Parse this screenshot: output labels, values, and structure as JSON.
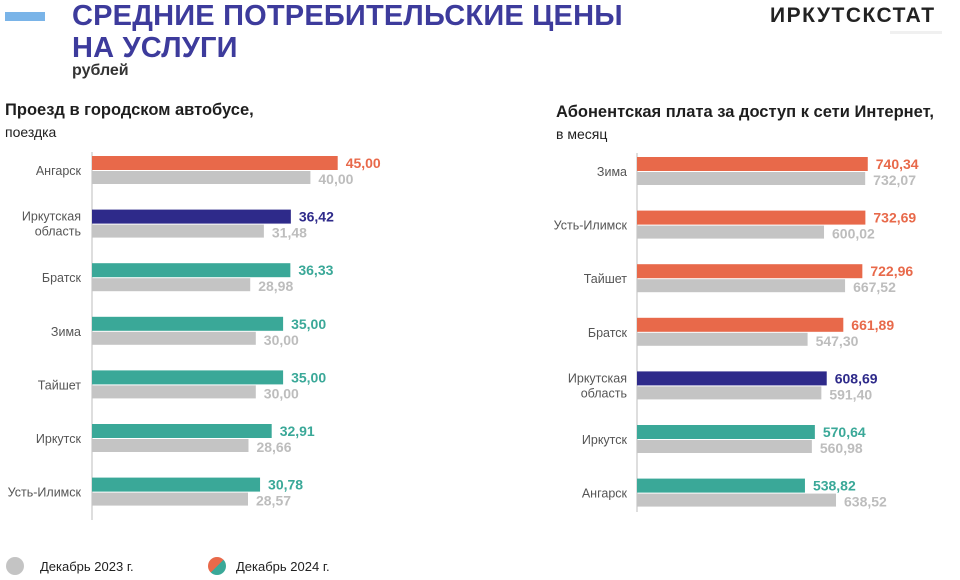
{
  "header": {
    "title_line1": "СРЕДНИЕ ПОТРЕБИТЕЛЬСКИЕ ЦЕНЫ",
    "title_line2": "НА УСЛУГИ",
    "subtitle": "рублей",
    "logo": "ИРКУТСКСТАТ"
  },
  "colors": {
    "title": "#3d3b9c",
    "accent_bar": "#7ab4e8",
    "prev_year": "#c4c4c4",
    "orange": "#e8694a",
    "teal": "#3aa898",
    "navy": "#2e2a8a"
  },
  "legend": {
    "prev": "Декабрь 2023 г.",
    "curr": "Декабрь 2024 г."
  },
  "chart_data": [
    {
      "type": "bar",
      "orientation": "horizontal",
      "title": "Проезд в городском автобусе,",
      "unit": "поездка",
      "categories": [
        "Ангарск",
        "Иркутская область",
        "Братск",
        "Зима",
        "Тайшет",
        "Иркутск",
        "Усть-Илимск"
      ],
      "category_lines": [
        [
          "Ангарск"
        ],
        [
          "Иркутская",
          "область"
        ],
        [
          "Братск"
        ],
        [
          "Зима"
        ],
        [
          "Тайшет"
        ],
        [
          "Иркутск"
        ],
        [
          "Усть-Илимск"
        ]
      ],
      "series": [
        {
          "name": "Декабрь 2024 г.",
          "values": [
            45.0,
            36.42,
            36.33,
            35.0,
            35.0,
            32.91,
            30.78
          ],
          "labels": [
            "45,00",
            "36,42",
            "36,33",
            "35,00",
            "35,00",
            "32,91",
            "30,78"
          ],
          "colors": [
            "#e8694a",
            "#2e2a8a",
            "#3aa898",
            "#3aa898",
            "#3aa898",
            "#3aa898",
            "#3aa898"
          ]
        },
        {
          "name": "Декабрь 2023 г.",
          "values": [
            40.0,
            31.48,
            28.98,
            30.0,
            30.0,
            28.66,
            28.57
          ],
          "labels": [
            "40,00",
            "31,48",
            "28,98",
            "30,00",
            "30,00",
            "28,66",
            "28,57"
          ],
          "colors": [
            "#c4c4c4",
            "#c4c4c4",
            "#c4c4c4",
            "#c4c4c4",
            "#c4c4c4",
            "#c4c4c4",
            "#c4c4c4"
          ]
        }
      ],
      "xlim": [
        0,
        50
      ],
      "grid": false,
      "legend_position": "bottom"
    },
    {
      "type": "bar",
      "orientation": "horizontal",
      "title": "Абонентская  плата за доступ к сети Интернет,",
      "unit": "в месяц",
      "categories": [
        "Зима",
        "Усть-Илимск",
        "Тайшет",
        "Братск",
        "Иркутская область",
        "Иркутск",
        "Ангарск"
      ],
      "category_lines": [
        [
          "Зима"
        ],
        [
          "Усть-Илимск"
        ],
        [
          "Тайшет"
        ],
        [
          "Братск"
        ],
        [
          "Иркутская",
          "область"
        ],
        [
          "Иркутск"
        ],
        [
          "Ангарск"
        ]
      ],
      "series": [
        {
          "name": "Декабрь 2024 г.",
          "values": [
            740.34,
            732.69,
            722.96,
            661.89,
            608.69,
            570.64,
            538.82
          ],
          "labels": [
            "740,34",
            "732,69",
            "722,96",
            "661,89",
            "608,69",
            "570,64",
            "538,82"
          ],
          "colors": [
            "#e8694a",
            "#e8694a",
            "#e8694a",
            "#e8694a",
            "#2e2a8a",
            "#3aa898",
            "#3aa898"
          ]
        },
        {
          "name": "Декабрь 2023 г.",
          "values": [
            732.07,
            600.02,
            667.52,
            547.3,
            591.4,
            560.98,
            638.52
          ],
          "labels": [
            "732,07",
            "600,02",
            "667,52",
            "547,30",
            "591,40",
            "560,98",
            "638,52"
          ],
          "colors": [
            "#c4c4c4",
            "#c4c4c4",
            "#c4c4c4",
            "#c4c4c4",
            "#c4c4c4",
            "#c4c4c4",
            "#c4c4c4"
          ]
        }
      ],
      "xlim": [
        0,
        800
      ],
      "grid": false,
      "legend_position": "bottom"
    }
  ]
}
